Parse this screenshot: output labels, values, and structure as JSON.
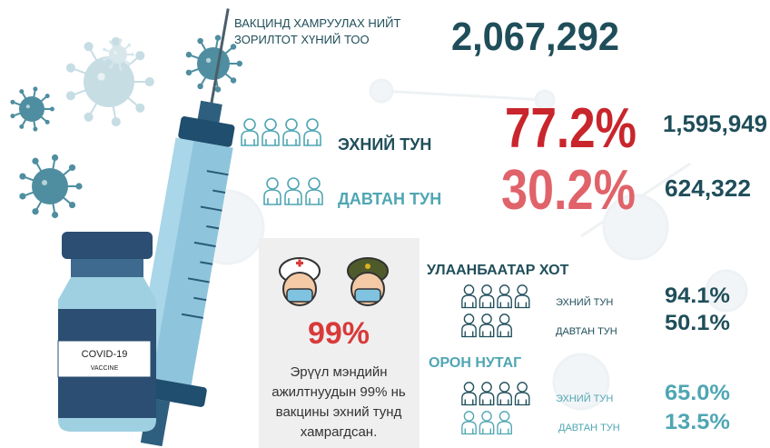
{
  "header": {
    "label_lines": [
      "ВАКЦИНД ХАМРУУЛАХ НИЙТ",
      "ЗОРИЛТОТ ХҮНИЙ ТОО"
    ],
    "total": "2,067,292"
  },
  "doses": [
    {
      "label": "ЭХНИЙ ТУН",
      "percent": "77.2%",
      "count": "1,595,949"
    },
    {
      "label": "ДАВТАН ТУН",
      "percent": "30.2%",
      "count": "624,322"
    }
  ],
  "health_workers": {
    "percent": "99%",
    "text_lines": [
      "Эрүүл мэндийн",
      "ажилтнуудын 99% нь",
      "вакцины эхний тунд",
      "хамрагдсан."
    ]
  },
  "regions": [
    {
      "title": "УЛААНБААТАР ХОТ",
      "rows": [
        {
          "label": "ЭХНИЙ ТУН",
          "percent": "94.1%"
        },
        {
          "label": "ДАВТАН ТУН",
          "percent": "50.1%"
        }
      ]
    },
    {
      "title": "ОРОН НУТАГ",
      "rows": [
        {
          "label": "ЭХНИЙ ТУН",
          "percent": "65.0%"
        },
        {
          "label": "ДАВТАН ТУН",
          "percent": "13.5%"
        }
      ]
    }
  ],
  "vial": {
    "label": "COVID-19",
    "sublabel": "VACCINE"
  }
}
